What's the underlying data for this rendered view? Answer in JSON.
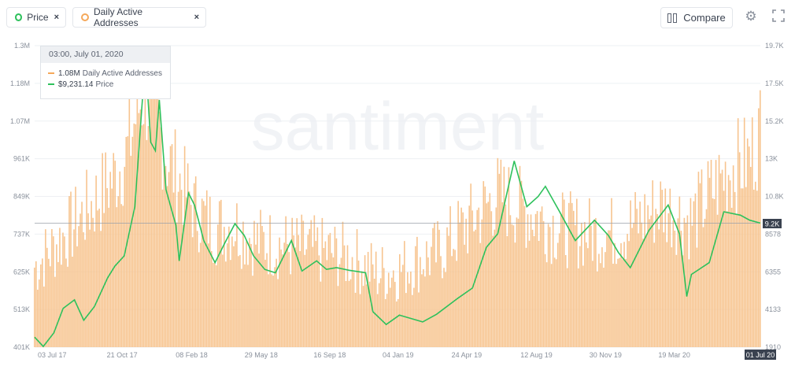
{
  "legend": {
    "items": [
      {
        "label": "Price",
        "color": "#2ec15c",
        "remove": "×"
      },
      {
        "label": "Daily Active Addresses",
        "color": "#f5a85a",
        "remove": "×"
      }
    ]
  },
  "toolbar": {
    "compare_label": "Compare",
    "settings_icon": "gear-icon",
    "fullscreen_icon": "fullscreen-icon"
  },
  "tooltip": {
    "date": "03:00, July 01, 2020",
    "rows": [
      {
        "value": "1.08M",
        "label": "Daily Active Addresses",
        "color": "#f5a85a"
      },
      {
        "value": "$9,231.14",
        "label": "Price",
        "color": "#2ec15c"
      }
    ]
  },
  "watermark": "santiment",
  "chart_data": {
    "type": "area",
    "x_ticks": [
      "03 Jul 17",
      "21 Oct 17",
      "08 Feb 18",
      "29 May 18",
      "16 Sep 18",
      "04 Jan 19",
      "24 Apr 19",
      "12 Aug 19",
      "30 Nov 19",
      "19 Mar 20",
      "01 Jul 20"
    ],
    "x_range": [
      "2017-07-03",
      "2020-07-01"
    ],
    "left_axis": {
      "ticks": [
        "401K",
        "513K",
        "625K",
        "737K",
        "849K",
        "961K",
        "1.07M",
        "1.18M",
        "1.3M"
      ],
      "range": [
        401000,
        1300000
      ]
    },
    "right_axis": {
      "ticks": [
        "1910",
        "4133",
        "6355",
        "8578",
        "10.8K",
        "13K",
        "15.2K",
        "17.5K",
        "19.7K"
      ],
      "range": [
        1910,
        19700
      ]
    },
    "current_price_label": "9.2K",
    "current_date_label": "01 Jul 20",
    "grid": true,
    "series": [
      {
        "name": "Daily Active Addresses",
        "axis": "left",
        "style": "bars",
        "color": "#f5a85a",
        "points": [
          [
            "2017-07-03",
            660000
          ],
          [
            "2017-08-01",
            720000
          ],
          [
            "2017-09-01",
            790000
          ],
          [
            "2017-10-01",
            860000
          ],
          [
            "2017-11-01",
            940000
          ],
          [
            "2017-11-20",
            1010000
          ],
          [
            "2017-12-01",
            1110000
          ],
          [
            "2017-12-15",
            1200000
          ],
          [
            "2018-01-01",
            1140000
          ],
          [
            "2018-01-20",
            990000
          ],
          [
            "2018-02-08",
            920000
          ],
          [
            "2018-03-01",
            840000
          ],
          [
            "2018-04-01",
            780000
          ],
          [
            "2018-05-01",
            790000
          ],
          [
            "2018-06-01",
            740000
          ],
          [
            "2018-07-01",
            730000
          ],
          [
            "2018-08-01",
            720000
          ],
          [
            "2018-09-01",
            710000
          ],
          [
            "2018-10-01",
            700000
          ],
          [
            "2018-11-01",
            680000
          ],
          [
            "2018-12-01",
            640000
          ],
          [
            "2019-01-04",
            650000
          ],
          [
            "2019-02-01",
            680000
          ],
          [
            "2019-03-01",
            700000
          ],
          [
            "2019-04-01",
            760000
          ],
          [
            "2019-05-01",
            820000
          ],
          [
            "2019-06-01",
            880000
          ],
          [
            "2019-07-01",
            850000
          ],
          [
            "2019-08-12",
            800000
          ],
          [
            "2019-09-01",
            780000
          ],
          [
            "2019-10-01",
            770000
          ],
          [
            "2019-11-01",
            760000
          ],
          [
            "2019-11-30",
            770000
          ],
          [
            "2020-01-01",
            800000
          ],
          [
            "2020-02-01",
            850000
          ],
          [
            "2020-03-01",
            820000
          ],
          [
            "2020-03-19",
            800000
          ],
          [
            "2020-04-15",
            880000
          ],
          [
            "2020-05-15",
            960000
          ],
          [
            "2020-06-15",
            990000
          ],
          [
            "2020-07-01",
            1080000
          ]
        ]
      },
      {
        "name": "Price",
        "axis": "right",
        "style": "line",
        "color": "#2ec15c",
        "points": [
          [
            "2017-07-03",
            2500
          ],
          [
            "2017-07-16",
            1950
          ],
          [
            "2017-08-01",
            2750
          ],
          [
            "2017-08-15",
            4200
          ],
          [
            "2017-09-01",
            4700
          ],
          [
            "2017-09-15",
            3500
          ],
          [
            "2017-10-01",
            4300
          ],
          [
            "2017-10-21",
            6000
          ],
          [
            "2017-11-01",
            6700
          ],
          [
            "2017-11-15",
            7300
          ],
          [
            "2017-12-01",
            10200
          ],
          [
            "2017-12-17",
            19000
          ],
          [
            "2017-12-25",
            14000
          ],
          [
            "2018-01-01",
            13500
          ],
          [
            "2018-01-07",
            16500
          ],
          [
            "2018-01-17",
            11200
          ],
          [
            "2018-02-01",
            9100
          ],
          [
            "2018-02-06",
            7000
          ],
          [
            "2018-02-20",
            11000
          ],
          [
            "2018-03-01",
            10300
          ],
          [
            "2018-03-15",
            8200
          ],
          [
            "2018-04-01",
            6900
          ],
          [
            "2018-04-15",
            8000
          ],
          [
            "2018-05-01",
            9200
          ],
          [
            "2018-05-15",
            8500
          ],
          [
            "2018-05-29",
            7300
          ],
          [
            "2018-06-15",
            6500
          ],
          [
            "2018-07-01",
            6300
          ],
          [
            "2018-07-25",
            8200
          ],
          [
            "2018-08-10",
            6400
          ],
          [
            "2018-09-01",
            7000
          ],
          [
            "2018-09-16",
            6500
          ],
          [
            "2018-10-01",
            6600
          ],
          [
            "2018-10-20",
            6450
          ],
          [
            "2018-11-14",
            6300
          ],
          [
            "2018-11-25",
            4000
          ],
          [
            "2018-12-15",
            3250
          ],
          [
            "2019-01-04",
            3800
          ],
          [
            "2019-02-08",
            3400
          ],
          [
            "2019-03-01",
            3850
          ],
          [
            "2019-04-02",
            4800
          ],
          [
            "2019-04-24",
            5400
          ],
          [
            "2019-05-15",
            7800
          ],
          [
            "2019-06-01",
            8600
          ],
          [
            "2019-06-26",
            12900
          ],
          [
            "2019-07-15",
            10200
          ],
          [
            "2019-08-01",
            10800
          ],
          [
            "2019-08-12",
            11400
          ],
          [
            "2019-09-01",
            10000
          ],
          [
            "2019-09-26",
            8200
          ],
          [
            "2019-10-25",
            9400
          ],
          [
            "2019-11-15",
            8500
          ],
          [
            "2019-11-30",
            7500
          ],
          [
            "2019-12-18",
            6600
          ],
          [
            "2020-01-15",
            8800
          ],
          [
            "2020-02-13",
            10300
          ],
          [
            "2020-03-01",
            8600
          ],
          [
            "2020-03-12",
            4900
          ],
          [
            "2020-03-19",
            6200
          ],
          [
            "2020-04-15",
            6900
          ],
          [
            "2020-05-07",
            9900
          ],
          [
            "2020-06-01",
            9700
          ],
          [
            "2020-06-15",
            9400
          ],
          [
            "2020-07-01",
            9231
          ]
        ]
      }
    ]
  }
}
